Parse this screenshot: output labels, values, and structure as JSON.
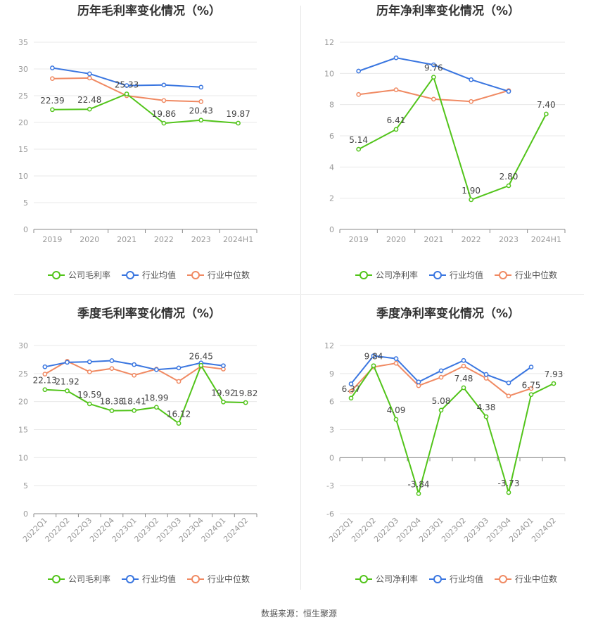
{
  "colors": {
    "company": "#52c41a",
    "industry_avg": "#3a76e0",
    "industry_median": "#f08a63"
  },
  "footer": {
    "source": "数据来源：恒生聚源"
  },
  "chart_data": [
    {
      "type": "line",
      "title": "历年毛利率变化情况（%）",
      "categories": [
        "2019",
        "2020",
        "2021",
        "2022",
        "2023",
        "2024H1"
      ],
      "ylim": [
        0,
        35
      ],
      "yticks": [
        0,
        5,
        10,
        15,
        20,
        25,
        30,
        35
      ],
      "series": [
        {
          "name": "公司毛利率",
          "values": [
            22.39,
            22.48,
            25.33,
            19.86,
            20.43,
            19.87
          ],
          "labels": [
            "22.39",
            "22.48",
            "25.33",
            "19.86",
            "20.43",
            "19.87"
          ]
        },
        {
          "name": "行业均值",
          "values": [
            30.2,
            29.1,
            26.9,
            27.0,
            26.6,
            null
          ]
        },
        {
          "name": "行业中位数",
          "values": [
            28.2,
            28.3,
            25.0,
            24.1,
            23.9,
            null
          ]
        }
      ],
      "legend": "bottom"
    },
    {
      "type": "line",
      "title": "历年净利率变化情况（%）",
      "categories": [
        "2019",
        "2020",
        "2021",
        "2022",
        "2023",
        "2024H1"
      ],
      "ylim": [
        0,
        12
      ],
      "yticks": [
        0,
        2,
        4,
        6,
        8,
        10,
        12
      ],
      "series": [
        {
          "name": "公司净利率",
          "values": [
            5.14,
            6.41,
            9.76,
            1.9,
            2.8,
            7.4
          ],
          "labels": [
            "5.14",
            "6.41",
            "9.76",
            "1.90",
            "2.80",
            "7.40"
          ]
        },
        {
          "name": "行业均值",
          "values": [
            10.15,
            11.0,
            10.55,
            9.6,
            8.85,
            null
          ]
        },
        {
          "name": "行业中位数",
          "values": [
            8.65,
            8.95,
            8.35,
            8.2,
            8.9,
            null
          ]
        }
      ],
      "legend": "bottom"
    },
    {
      "type": "line",
      "title": "季度毛利率变化情况（%）",
      "categories": [
        "2022Q1",
        "2022Q2",
        "2022Q3",
        "2022Q4",
        "2023Q1",
        "2023Q2",
        "2023Q3",
        "2023Q4",
        "2024Q1",
        "2024Q2"
      ],
      "ylim": [
        0,
        30
      ],
      "yticks": [
        0,
        5,
        10,
        15,
        20,
        25,
        30
      ],
      "series": [
        {
          "name": "公司毛利率",
          "values": [
            22.13,
            21.92,
            19.59,
            18.38,
            18.41,
            18.99,
            16.12,
            26.45,
            19.92,
            19.82
          ],
          "labels": [
            "22.13",
            "21.92",
            "19.59",
            "18.38",
            "18.41",
            "18.99",
            "16.12",
            "26.45",
            "19.92",
            "19.82"
          ]
        },
        {
          "name": "行业均值",
          "values": [
            26.2,
            27.0,
            27.1,
            27.3,
            26.6,
            25.7,
            26.0,
            26.9,
            26.4,
            null
          ]
        },
        {
          "name": "行业中位数",
          "values": [
            24.9,
            27.2,
            25.3,
            25.9,
            24.7,
            25.8,
            23.6,
            26.3,
            25.8,
            null
          ]
        }
      ],
      "legend": "bottom"
    },
    {
      "type": "line",
      "title": "季度净利率变化情况（%）",
      "categories": [
        "2022Q1",
        "2022Q2",
        "2022Q3",
        "2022Q4",
        "2023Q1",
        "2023Q2",
        "2023Q3",
        "2023Q4",
        "2024Q1",
        "2024Q2"
      ],
      "ylim": [
        -6,
        12
      ],
      "yticks": [
        -6,
        -3,
        0,
        3,
        6,
        9,
        12
      ],
      "series": [
        {
          "name": "公司净利率",
          "values": [
            6.37,
            9.84,
            4.09,
            -3.84,
            5.08,
            7.48,
            4.38,
            -3.73,
            6.75,
            7.93
          ],
          "labels": [
            "6.37",
            "9.84",
            "4.09",
            "-3.84",
            "5.08",
            "7.48",
            "4.38",
            "-3.73",
            "6.75",
            "7.93"
          ]
        },
        {
          "name": "行业均值",
          "values": [
            7.9,
            10.9,
            10.6,
            8.1,
            9.3,
            10.4,
            8.9,
            8.0,
            9.7,
            null
          ]
        },
        {
          "name": "行业中位数",
          "values": [
            7.1,
            9.7,
            10.1,
            7.7,
            8.6,
            9.8,
            8.5,
            6.6,
            7.4,
            null
          ]
        }
      ],
      "legend": "bottom"
    }
  ]
}
